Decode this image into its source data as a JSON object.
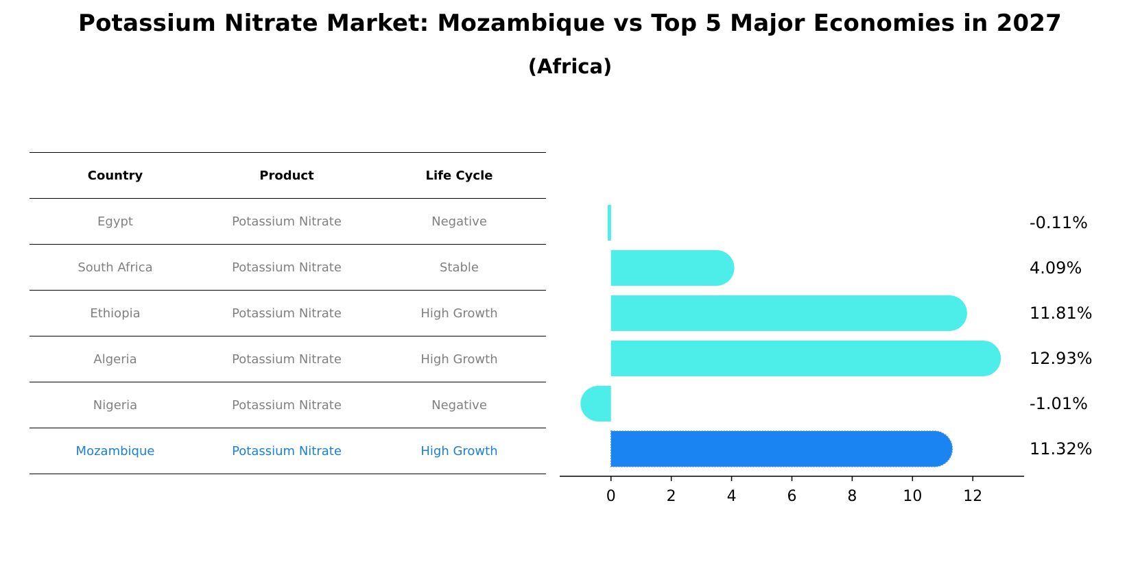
{
  "title": "Potassium Nitrate Market: Mozambique vs Top 5 Major Economies in 2027",
  "subtitle": "(Africa)",
  "table": {
    "headers": [
      "Country",
      "Product",
      "Life Cycle"
    ],
    "rows": [
      [
        "Egypt",
        "Potassium Nitrate",
        "Negative"
      ],
      [
        "South Africa",
        "Potassium Nitrate",
        "Stable"
      ],
      [
        "Ethiopia",
        "Potassium Nitrate",
        "High Growth"
      ],
      [
        "Algeria",
        "Potassium Nitrate",
        "High Growth"
      ],
      [
        "Nigeria",
        "Potassium Nitrate",
        "Negative"
      ],
      [
        "Mozambique",
        "Potassium Nitrate",
        "High Growth"
      ]
    ]
  },
  "chart_data": {
    "type": "bar",
    "orientation": "horizontal",
    "categories": [
      "Egypt",
      "South Africa",
      "Ethiopia",
      "Algeria",
      "Nigeria",
      "Mozambique"
    ],
    "values": [
      -0.11,
      4.09,
      11.81,
      12.93,
      -1.01,
      11.32
    ],
    "value_labels": [
      "-0.11%",
      "4.09%",
      "11.81%",
      "12.93%",
      "-1.01%",
      "11.32%"
    ],
    "highlight": "Mozambique",
    "xlim": [
      -1.7,
      13.7
    ],
    "xticks": [
      0,
      2,
      4,
      6,
      8,
      10,
      12
    ],
    "colors": {
      "default": "#4deeea",
      "highlight": "#1a85f2",
      "highlight_text": "#1a80d4"
    }
  }
}
